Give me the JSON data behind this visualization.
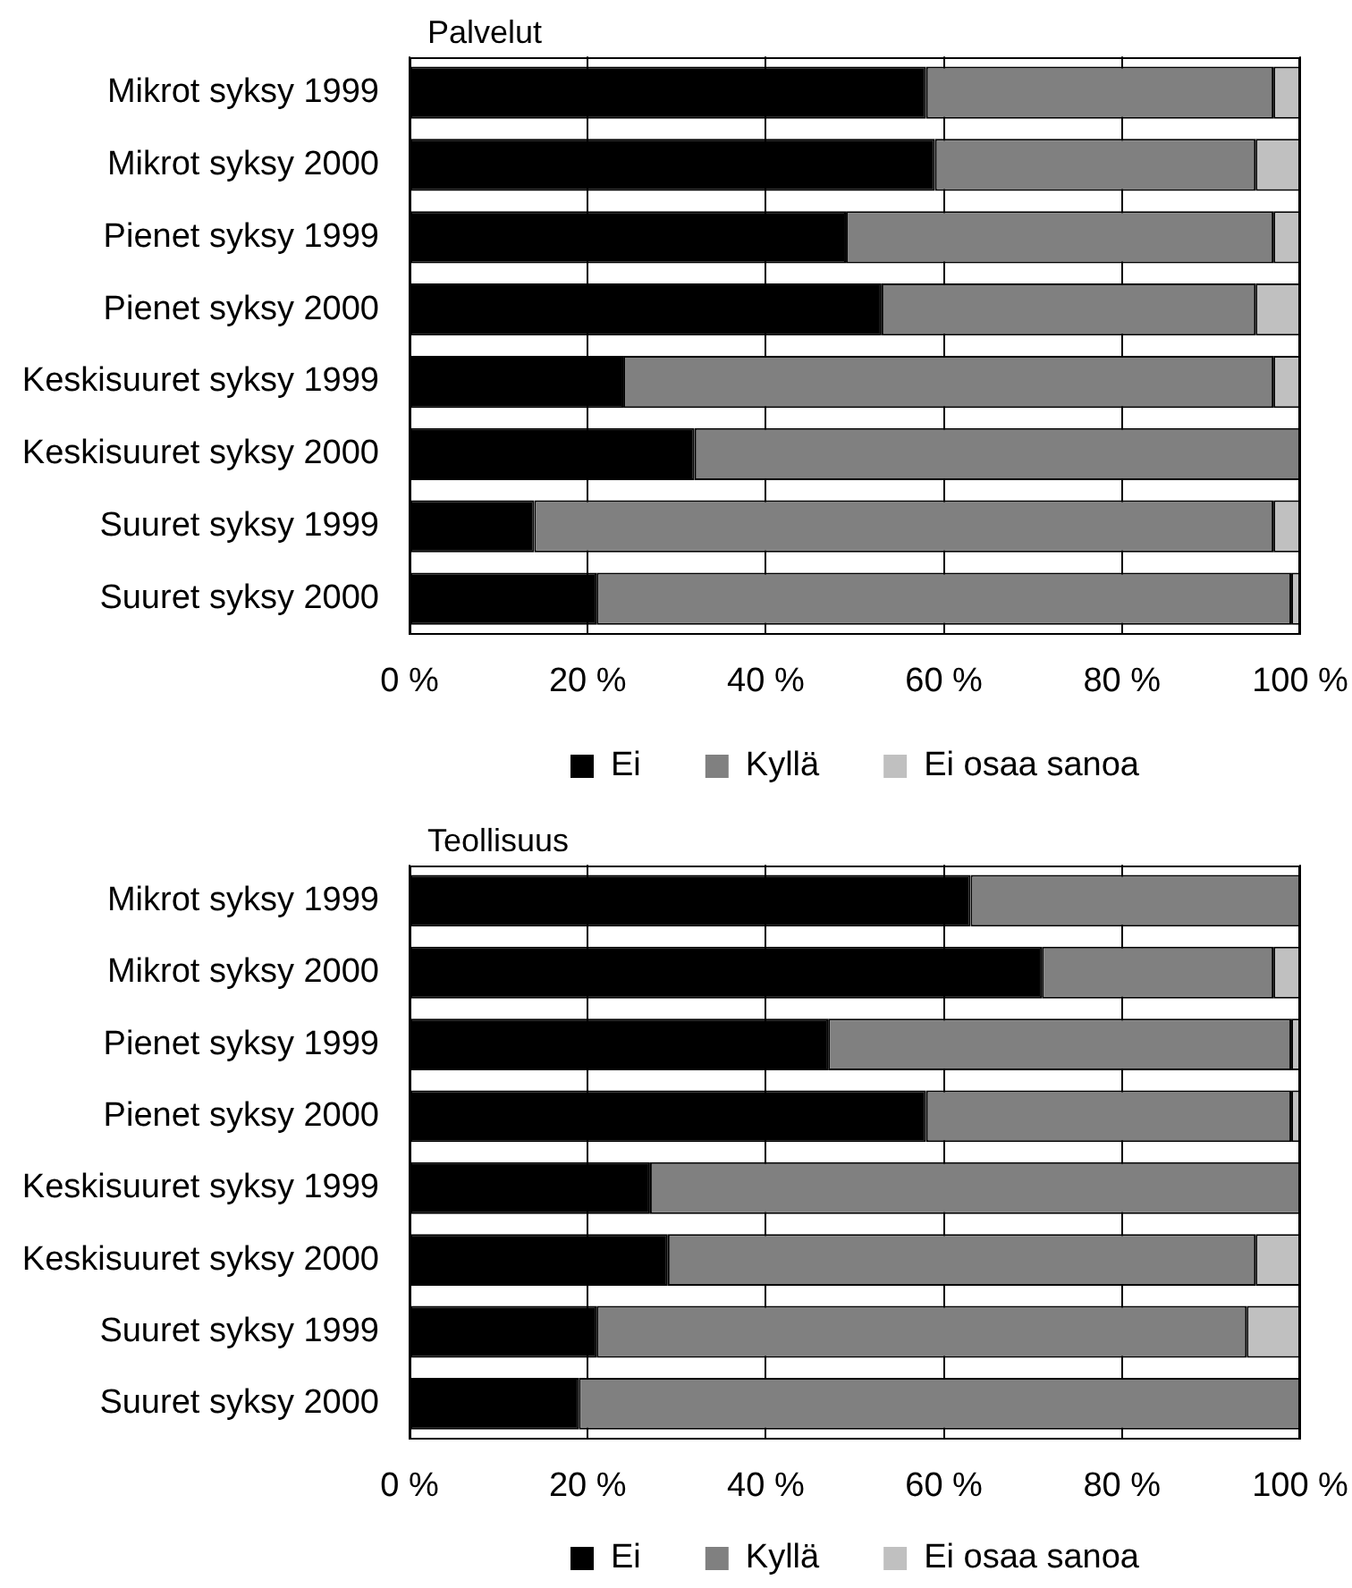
{
  "chart_data": [
    {
      "type": "bar",
      "orientation": "horizontal",
      "stacked": true,
      "title": "Palvelut",
      "categories": [
        "Mikrot syksy 1999",
        "Mikrot syksy 2000",
        "Pienet syksy 1999",
        "Pienet syksy 2000",
        "Keskisuuret syksy 1999",
        "Keskisuuret syksy 2000",
        "Suuret syksy 1999",
        "Suuret syksy 2000"
      ],
      "series": [
        {
          "name": "Ei",
          "color": "#000000",
          "values": [
            58,
            59,
            49,
            53,
            24,
            32,
            14,
            21
          ]
        },
        {
          "name": "Kyllä",
          "color": "#808080",
          "values": [
            39,
            36,
            48,
            42,
            73,
            68,
            83,
            78
          ]
        },
        {
          "name": "Ei osaa sanoa",
          "color": "#c0c0c0",
          "values": [
            3,
            5,
            3,
            5,
            3,
            0,
            3,
            1
          ]
        }
      ],
      "xlim": [
        0,
        100
      ],
      "xticks": [
        {
          "value": 0,
          "label": "0 %"
        },
        {
          "value": 20,
          "label": "20 %"
        },
        {
          "value": 40,
          "label": "40 %"
        },
        {
          "value": 60,
          "label": "60 %"
        },
        {
          "value": 80,
          "label": "80 %"
        },
        {
          "value": 100,
          "label": "100 %"
        }
      ],
      "grid": "x",
      "legend": "bottom"
    },
    {
      "type": "bar",
      "orientation": "horizontal",
      "stacked": true,
      "title": "Teollisuus",
      "categories": [
        "Mikrot syksy 1999",
        "Mikrot syksy 2000",
        "Pienet syksy 1999",
        "Pienet syksy 2000",
        "Keskisuuret syksy 1999",
        "Keskisuuret syksy 2000",
        "Suuret syksy 1999",
        "Suuret syksy 2000"
      ],
      "series": [
        {
          "name": "Ei",
          "color": "#000000",
          "values": [
            63,
            71,
            47,
            58,
            27,
            29,
            21,
            19
          ]
        },
        {
          "name": "Kyllä",
          "color": "#808080",
          "values": [
            37,
            26,
            52,
            41,
            73,
            66,
            73,
            81
          ]
        },
        {
          "name": "Ei osaa sanoa",
          "color": "#c0c0c0",
          "values": [
            0,
            3,
            1,
            1,
            0,
            5,
            6,
            0
          ]
        }
      ],
      "xlim": [
        0,
        100
      ],
      "xticks": [
        {
          "value": 0,
          "label": "0 %"
        },
        {
          "value": 20,
          "label": "20 %"
        },
        {
          "value": 40,
          "label": "40 %"
        },
        {
          "value": 60,
          "label": "60 %"
        },
        {
          "value": 80,
          "label": "80 %"
        },
        {
          "value": 100,
          "label": "100 %"
        }
      ],
      "grid": "x",
      "legend": "bottom"
    }
  ]
}
